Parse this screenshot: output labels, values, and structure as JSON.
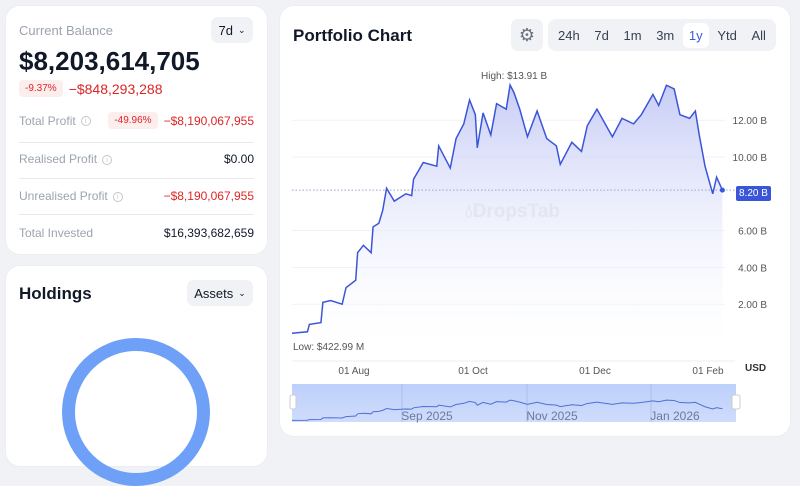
{
  "balance": {
    "title": "Current Balance",
    "period": "7d",
    "value": "$8,203,614,705",
    "change_pct": "-9.37%",
    "change_abs": "−$848,293,288",
    "rows": [
      {
        "label": "Total Profit",
        "pct": "-49.96%",
        "value": "−$8,190,067,955",
        "negative": true
      },
      {
        "label": "Realised Profit",
        "value": "$0.00",
        "negative": false
      },
      {
        "label": "Unrealised Profit",
        "value": "−$8,190,067,955",
        "negative": true
      },
      {
        "label": "Total Invested",
        "value": "$16,393,682,659",
        "negative": false
      }
    ]
  },
  "holdings": {
    "title": "Holdings",
    "selector": "Assets",
    "donut_color": "#6ea0f7"
  },
  "chart_header": {
    "title": "Portfolio Chart",
    "tabs": [
      "24h",
      "7d",
      "1m",
      "3m",
      "1y",
      "Ytd",
      "All"
    ],
    "active_tab": "1y",
    "watermark": "DropsTab"
  },
  "chart_data": {
    "type": "area",
    "currency": "USD",
    "y_unit": "B",
    "high_label": "High: $13.91 B",
    "low_label": "Low: $422.99 M",
    "current_label": "8.20 B",
    "current": 8.2,
    "y_ticks": [
      "2.00 B",
      "4.00 B",
      "6.00 B",
      "8.00 B",
      "10.00 B",
      "12.00 B"
    ],
    "x_ticks": [
      "01 Aug",
      "01 Oct",
      "01 Dec",
      "01 Feb"
    ],
    "navigator_ticks": [
      "Sep 2025",
      "Nov 2025",
      "Jan 2026"
    ],
    "colors": {
      "line": "#3b55d9",
      "fill": "#c7cdf6",
      "badge": "#3b55d9"
    },
    "series": [
      [
        "2025-07-01",
        0.42
      ],
      [
        "2025-07-09",
        0.5
      ],
      [
        "2025-07-10",
        0.9
      ],
      [
        "2025-07-16",
        1.0
      ],
      [
        "2025-07-17",
        2.1
      ],
      [
        "2025-07-21",
        2.2
      ],
      [
        "2025-07-27",
        2.0
      ],
      [
        "2025-07-29",
        2.9
      ],
      [
        "2025-08-03",
        3.3
      ],
      [
        "2025-08-04",
        4.8
      ],
      [
        "2025-08-07",
        5.2
      ],
      [
        "2025-08-11",
        4.8
      ],
      [
        "2025-08-12",
        6.2
      ],
      [
        "2025-08-15",
        6.4
      ],
      [
        "2025-08-17",
        7.1
      ],
      [
        "2025-08-19",
        8.3
      ],
      [
        "2025-08-23",
        7.6
      ],
      [
        "2025-08-29",
        8.0
      ],
      [
        "2025-09-01",
        7.9
      ],
      [
        "2025-09-02",
        8.8
      ],
      [
        "2025-09-07",
        9.7
      ],
      [
        "2025-09-14",
        9.5
      ],
      [
        "2025-09-15",
        10.6
      ],
      [
        "2025-09-21",
        9.4
      ],
      [
        "2025-09-24",
        11.0
      ],
      [
        "2025-09-28",
        11.8
      ],
      [
        "2025-10-01",
        13.1
      ],
      [
        "2025-10-04",
        12.3
      ],
      [
        "2025-10-05",
        10.5
      ],
      [
        "2025-10-08",
        12.4
      ],
      [
        "2025-10-12",
        11.2
      ],
      [
        "2025-10-15",
        12.9
      ],
      [
        "2025-10-20",
        12.6
      ],
      [
        "2025-10-22",
        13.91
      ],
      [
        "2025-10-24",
        13.5
      ],
      [
        "2025-10-27",
        12.6
      ],
      [
        "2025-10-31",
        11.1
      ],
      [
        "2025-11-05",
        12.5
      ],
      [
        "2025-11-10",
        11.0
      ],
      [
        "2025-11-15",
        10.6
      ],
      [
        "2025-11-17",
        9.6
      ],
      [
        "2025-11-23",
        10.8
      ],
      [
        "2025-11-28",
        10.3
      ],
      [
        "2025-12-01",
        11.7
      ],
      [
        "2025-12-06",
        12.6
      ],
      [
        "2025-12-14",
        11.1
      ],
      [
        "2025-12-19",
        12.1
      ],
      [
        "2025-12-25",
        11.8
      ],
      [
        "2025-12-29",
        12.3
      ],
      [
        "2026-01-04",
        13.4
      ],
      [
        "2026-01-07",
        12.8
      ],
      [
        "2026-01-11",
        13.9
      ],
      [
        "2026-01-15",
        13.7
      ],
      [
        "2026-01-18",
        12.3
      ],
      [
        "2026-01-23",
        12.1
      ],
      [
        "2026-01-26",
        12.5
      ],
      [
        "2026-01-28",
        11.2
      ],
      [
        "2026-01-31",
        9.5
      ],
      [
        "2026-02-04",
        8.0
      ],
      [
        "2026-02-06",
        8.9
      ],
      [
        "2026-02-09",
        8.2
      ]
    ]
  }
}
